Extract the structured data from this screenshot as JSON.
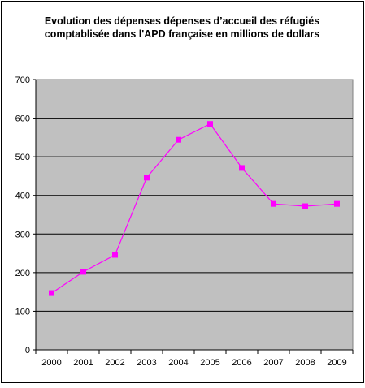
{
  "chart_data": {
    "type": "line",
    "title_line1": "Evolution des dépenses dépenses d’accueil des réfugiés",
    "title_line2": "comptablisée dans l'APD française en millions de dollars",
    "xlabel": "",
    "ylabel": "",
    "categories": [
      "2000",
      "2001",
      "2002",
      "2003",
      "2004",
      "2005",
      "2006",
      "2007",
      "2008",
      "2009"
    ],
    "series": [
      {
        "values": [
          147,
          202,
          246,
          446,
          544,
          585,
          471,
          378,
          372,
          378
        ],
        "color": "#ff00ff"
      }
    ],
    "ylim": [
      0,
      700
    ],
    "yticks": [
      0,
      100,
      200,
      300,
      400,
      500,
      600,
      700
    ],
    "grid": true,
    "legend": "none",
    "plot_background": "#c0c0c0",
    "chart_background": "#ffffff"
  }
}
